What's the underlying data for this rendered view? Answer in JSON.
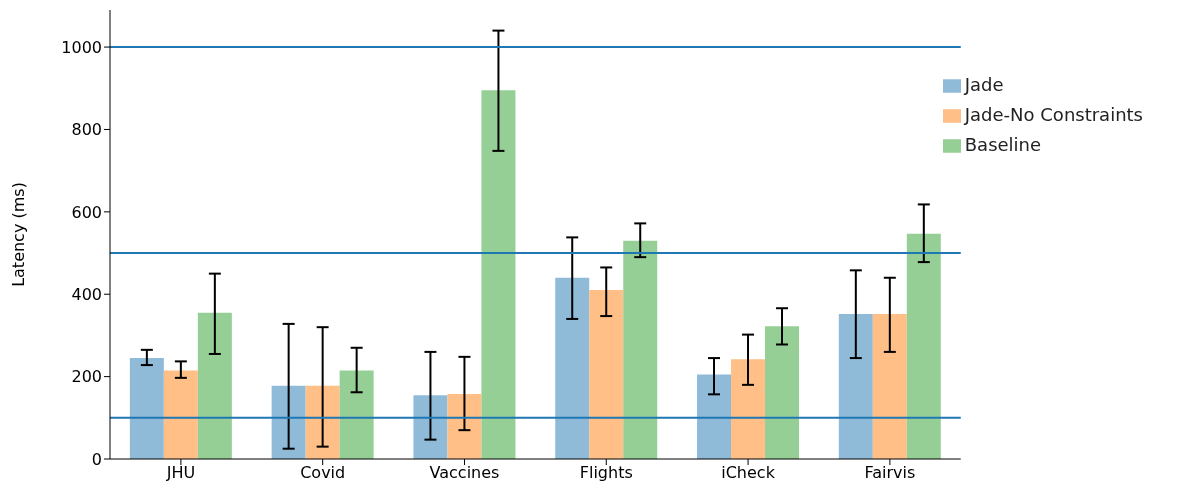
{
  "chart_data": {
    "type": "bar",
    "ylabel": "Latency (ms)",
    "categories": [
      "JHU",
      "Covid",
      "Vaccines",
      "Flights",
      "iCheck",
      "Fairvis"
    ],
    "series": [
      {
        "name": "Jade",
        "color": "#8fbbd9",
        "values": [
          245,
          178,
          155,
          440,
          205,
          352
        ],
        "errors": [
          [
            228,
            265
          ],
          [
            25,
            328
          ],
          [
            47,
            260
          ],
          [
            340,
            538
          ],
          [
            157,
            245
          ],
          [
            245,
            458
          ]
        ]
      },
      {
        "name": "Jade-No Constraints",
        "color": "#ffbf86",
        "values": [
          215,
          178,
          158,
          410,
          242,
          352
        ],
        "errors": [
          [
            197,
            237
          ],
          [
            30,
            320
          ],
          [
            70,
            248
          ],
          [
            347,
            465
          ],
          [
            180,
            302
          ],
          [
            260,
            440
          ]
        ]
      },
      {
        "name": "Baseline",
        "color": "#95cf95",
        "values": [
          355,
          215,
          895,
          530,
          322,
          547
        ],
        "errors": [
          [
            255,
            450
          ],
          [
            162,
            270
          ],
          [
            748,
            1040
          ],
          [
            490,
            572
          ],
          [
            278,
            366
          ],
          [
            478,
            618
          ]
        ]
      }
    ],
    "ylim": [
      0,
      1090
    ],
    "yticks": [
      0,
      200,
      400,
      600,
      800,
      1000
    ],
    "ref_lines": [
      {
        "axis": "y",
        "value": 100,
        "color": "#1f77b4"
      },
      {
        "axis": "y",
        "value": 500,
        "color": "#1f77b4"
      },
      {
        "axis": "y",
        "value": 1000,
        "color": "#1f77b4"
      }
    ],
    "legend": "top right",
    "grid": false
  }
}
